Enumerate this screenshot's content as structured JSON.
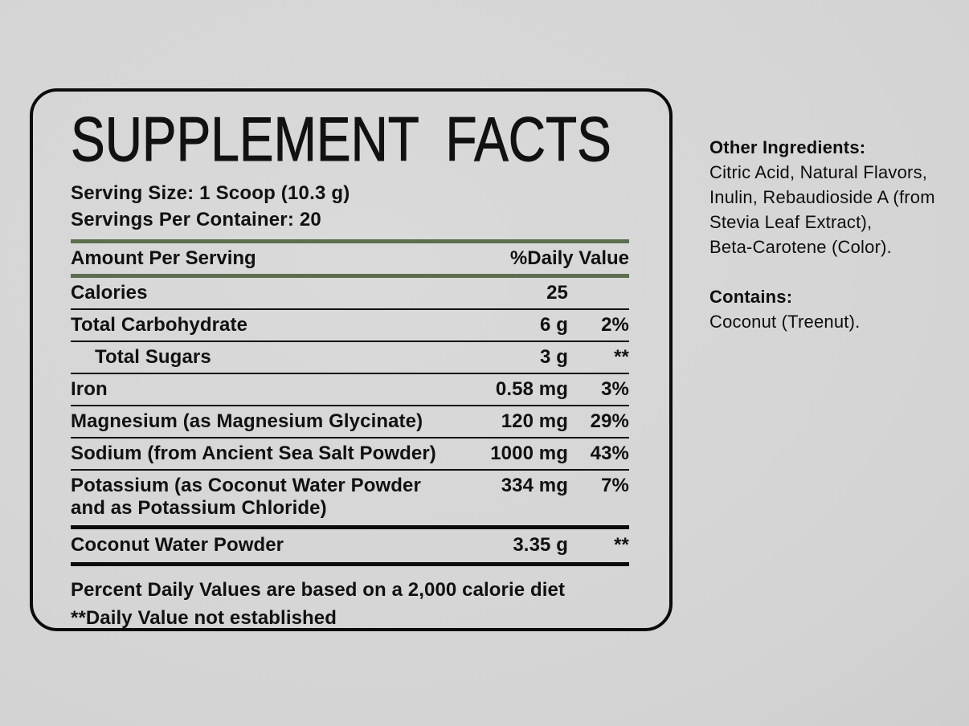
{
  "colors": {
    "accent_green": "#5d6e4f",
    "ink": "#111111",
    "background_gray": "#d4d4d4"
  },
  "panel": {
    "title": "SUPPLEMENT FACTS",
    "serving_size": "Serving Size: 1 Scoop (10.3 g)",
    "servings_per_container": "Servings Per Container: 20",
    "columns": {
      "amount": "Amount Per Serving",
      "daily_value": "%Daily Value"
    },
    "rows": [
      {
        "name": "Calories",
        "amount": "25",
        "dv": ""
      },
      {
        "name": "Total Carbohydrate",
        "amount": "6 g",
        "dv": "2%"
      },
      {
        "name": "Total Sugars",
        "amount": "3 g",
        "dv": "**"
      },
      {
        "name": "Iron",
        "amount": "0.58 mg",
        "dv": "3%"
      },
      {
        "name": "Magnesium (as Magnesium Glycinate)",
        "amount": "120 mg",
        "dv": "29%"
      },
      {
        "name": "Sodium (from Ancient Sea Salt Powder)",
        "amount": "1000 mg",
        "dv": "43%"
      },
      {
        "name_line1": "Potassium (as Coconut Water Powder",
        "name_line2": "and as Potassium Chloride)",
        "amount": "334 mg",
        "dv": "7%"
      },
      {
        "name": "Coconut Water Powder",
        "amount": "3.35 g",
        "dv": "**"
      }
    ],
    "footnotes": [
      "Percent Daily Values are based on a 2,000 calorie diet",
      "**Daily Value not established"
    ]
  },
  "side": {
    "other_ingredients_heading": "Other Ingredients:",
    "other_ingredients_lines": [
      "Citric Acid, Natural Flavors,",
      "Inulin, Rebaudioside A (from",
      "Stevia Leaf Extract),",
      "Beta-Carotene (Color)."
    ],
    "contains_heading": "Contains:",
    "contains_line": "Coconut (Treenut)."
  }
}
